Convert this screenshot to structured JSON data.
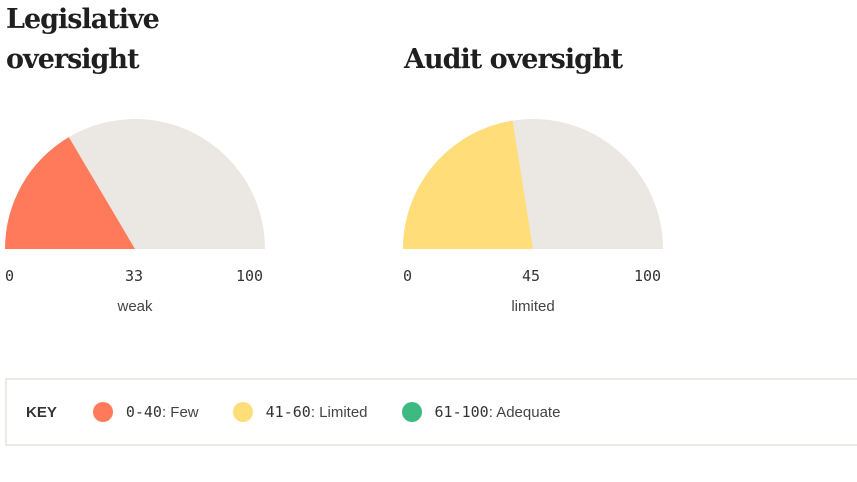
{
  "colors": {
    "few": "#ff7a5a",
    "limited": "#ffde7a",
    "adequate": "#3dba82",
    "track": "#ebe8e4"
  },
  "gauges": [
    {
      "title": "Legislative oversight",
      "value": 33,
      "value_label": "33",
      "min_label": "0",
      "max_label": "100",
      "rating": "weak",
      "color": "#ff7a5a"
    },
    {
      "title": "Audit oversight",
      "value": 45,
      "value_label": "45",
      "min_label": "0",
      "max_label": "100",
      "rating": "limited",
      "color": "#ffde7a"
    }
  ],
  "key": {
    "label": "KEY",
    "items": [
      {
        "range": "0-40",
        "desc": ": Few",
        "color": "#ff7a5a",
        "icon": "dot-icon"
      },
      {
        "range": "41-60",
        "desc": ": Limited",
        "color": "#ffde7a",
        "icon": "dot-icon"
      },
      {
        "range": "61-100",
        "desc": ": Adequate",
        "color": "#3dba82",
        "icon": "dot-icon"
      }
    ]
  },
  "chart_data": [
    {
      "type": "gauge",
      "title": "Legislative oversight",
      "value": 33,
      "range": [
        0,
        100
      ],
      "tick_labels": [
        "0",
        "33",
        "100"
      ],
      "rating": "weak",
      "legend": [
        {
          "label": "0-40: Few",
          "color": "#ff7a5a"
        },
        {
          "label": "41-60: Limited",
          "color": "#ffde7a"
        },
        {
          "label": "61-100: Adequate",
          "color": "#3dba82"
        }
      ]
    },
    {
      "type": "gauge",
      "title": "Audit oversight",
      "value": 45,
      "range": [
        0,
        100
      ],
      "tick_labels": [
        "0",
        "45",
        "100"
      ],
      "rating": "limited",
      "legend": [
        {
          "label": "0-40: Few",
          "color": "#ff7a5a"
        },
        {
          "label": "41-60: Limited",
          "color": "#ffde7a"
        },
        {
          "label": "61-100: Adequate",
          "color": "#3dba82"
        }
      ]
    }
  ]
}
